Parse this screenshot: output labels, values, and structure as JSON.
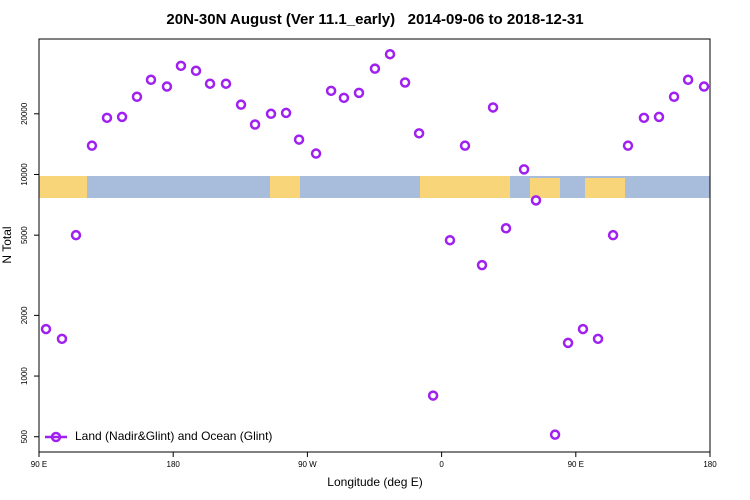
{
  "chart_data": {
    "type": "scatter",
    "title": "20N-30N August (Ver 11.1_early)   2014-09-06 to 2018-12-31",
    "x_label": "Longitude (deg E)",
    "y_label": "N Total",
    "log_y": true,
    "legend": "bottom-left",
    "xlim": [
      90,
      540
    ],
    "ylim": [
      420,
      47000
    ],
    "xticks": [
      {
        "value": 90,
        "label": "90 E"
      },
      180,
      {
        "value": 270,
        "label": "90 W"
      },
      {
        "value": 360,
        "label": "0"
      },
      {
        "value": 450,
        "label": "90 E"
      },
      {
        "value": 540,
        "label": "180"
      }
    ],
    "yticks": [
      500,
      1000,
      2000,
      5000,
      10000,
      20000
    ],
    "series": [
      {
        "name": "Land (Nadir&Glint) and Ocean (Glint)",
        "color": "#a020f0",
        "x": [
          94.7,
          105.4,
          114.8,
          125.5,
          135.6,
          145.7,
          155.7,
          165.1,
          175.8,
          185.2,
          195.3,
          204.7,
          215.4,
          225.5,
          234.9,
          245.6,
          255.7,
          264.4,
          275.8,
          285.9,
          294.5,
          304.6,
          315.3,
          325.4,
          335.5,
          344.9,
          354.3,
          365.6,
          375.7,
          387.1,
          394.5,
          403.2,
          415.3,
          423.3,
          436.1,
          444.8,
          454.8,
          464.9,
          475,
          485,
          495.7,
          505.8,
          515.9,
          525.3,
          536
        ],
        "values": [
          1710,
          1530,
          5000,
          13900,
          19100,
          19300,
          24300,
          29500,
          27300,
          34600,
          32700,
          28200,
          28200,
          22200,
          17700,
          20000,
          20200,
          14900,
          12700,
          26000,
          24000,
          25400,
          33500,
          39500,
          28600,
          16000,
          800,
          4720,
          13900,
          3550,
          21500,
          5410,
          10600,
          7440,
          512,
          1460,
          1710,
          1530,
          5000,
          13900,
          19100,
          19300,
          24300,
          29500,
          27300
        ]
      }
    ]
  }
}
